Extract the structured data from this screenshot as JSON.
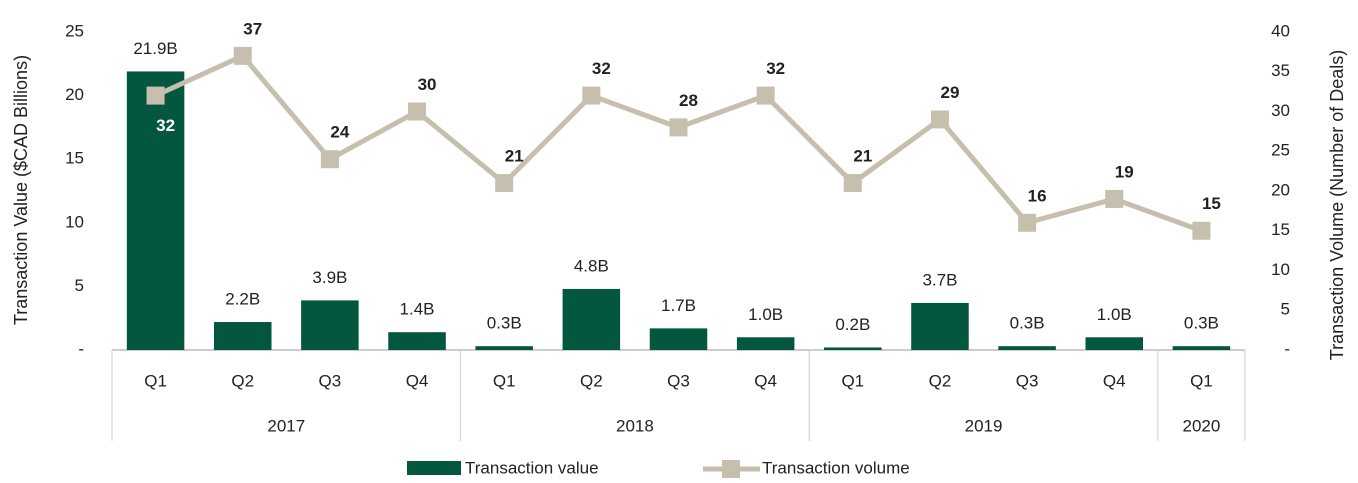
{
  "chart_data": {
    "type": "bar_line",
    "categories": [
      "Q1",
      "Q2",
      "Q3",
      "Q4",
      "Q1",
      "Q2",
      "Q3",
      "Q4",
      "Q1",
      "Q2",
      "Q3",
      "Q4",
      "Q1"
    ],
    "x_groups": [
      {
        "label": "2017",
        "count": 4
      },
      {
        "label": "2018",
        "count": 4
      },
      {
        "label": "2019",
        "count": 4
      },
      {
        "label": "2020",
        "count": 1
      }
    ],
    "y_label": "Transaction Value ($CAD Billions)",
    "y2_label": "Transaction Volume (Number of Deals)",
    "ylim": [
      0,
      25
    ],
    "yticks": [
      {
        "value": 0,
        "label": "-"
      },
      5,
      10,
      15,
      20,
      25
    ],
    "y2lim": [
      0,
      40
    ],
    "y2ticks": [
      {
        "value": 0,
        "label": "-"
      },
      5,
      10,
      15,
      20,
      25,
      30,
      35,
      40
    ],
    "series": [
      {
        "name": "Transaction value",
        "type": "bar",
        "color": "#03573f",
        "values": [
          21.9,
          2.2,
          3.9,
          1.4,
          0.3,
          4.8,
          1.7,
          1.0,
          0.2,
          3.7,
          0.3,
          1.0,
          0.3
        ],
        "value_labels": [
          "21.9B",
          "2.2B",
          "3.9B",
          "1.4B",
          "0.3B",
          "4.8B",
          "1.7B",
          "1.0B",
          "0.2B",
          "3.7B",
          "0.3B",
          "1.0B",
          "0.3B"
        ]
      },
      {
        "name": "Transaction volume",
        "type": "line",
        "axis": "y2",
        "color": "#c7bfae",
        "values": [
          32,
          37,
          24,
          30,
          21,
          32,
          28,
          32,
          21,
          29,
          16,
          19,
          15
        ]
      }
    ]
  }
}
